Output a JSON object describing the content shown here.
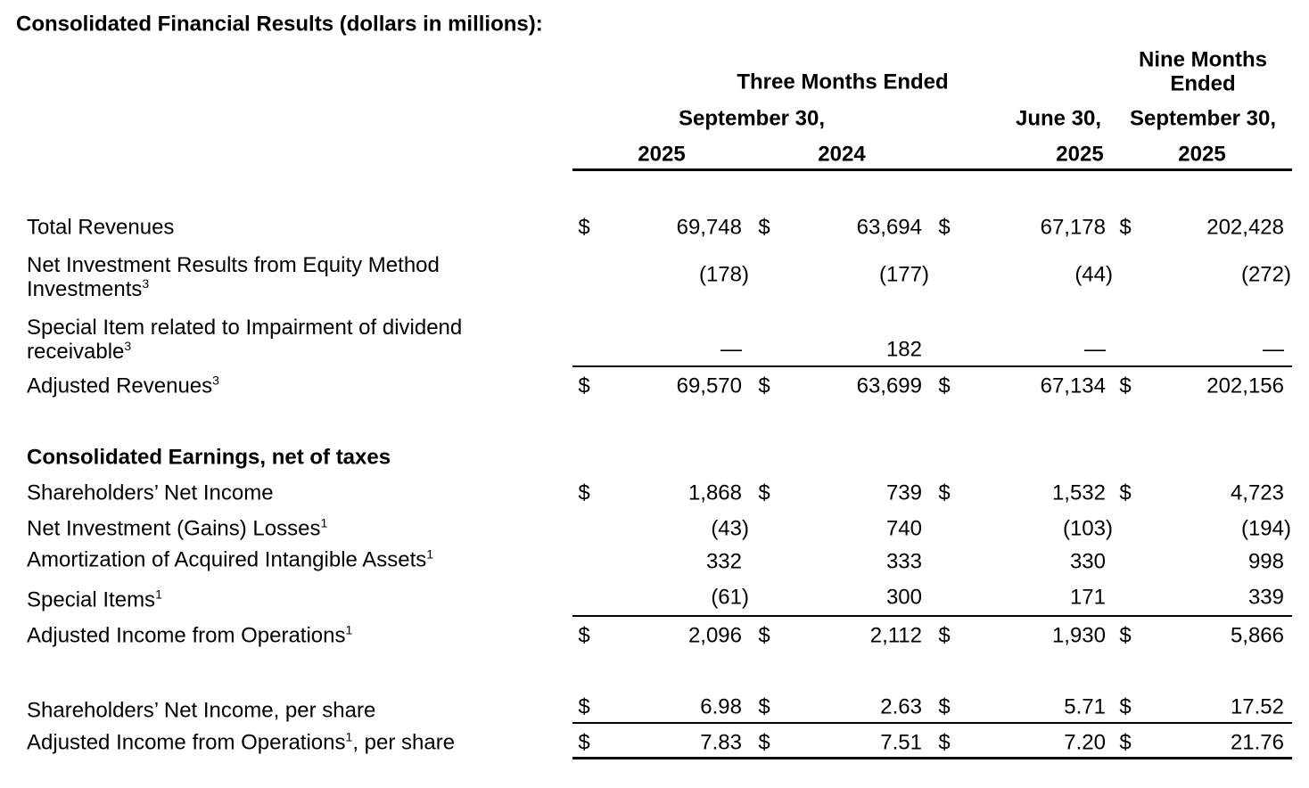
{
  "title": "Consolidated Financial Results (dollars in millions):",
  "header": {
    "three_months": "Three Months Ended",
    "nine_months": [
      "Nine Months",
      "Ended"
    ],
    "dates": [
      "September 30,",
      "June 30,",
      "September 30,"
    ],
    "years": [
      "2025",
      "2024",
      "2025",
      "2025"
    ]
  },
  "revenue_rows": [
    {
      "label": "Total Revenues",
      "currency": "$",
      "values": [
        "69,748",
        "63,694",
        "67,178",
        "202,428"
      ]
    },
    {
      "label": "Net Investment Results from Equity Method Investments",
      "note": "3",
      "values": [
        "(178)",
        "(177)",
        "(44)",
        "(272)"
      ]
    },
    {
      "label": "Special Item related to Impairment of dividend receivable",
      "note": "3",
      "values": [
        "—",
        "182",
        "—",
        "—"
      ]
    },
    {
      "label": "Adjusted Revenues",
      "note": "3",
      "currency": "$",
      "values": [
        "69,570",
        "63,699",
        "67,134",
        "202,156"
      ]
    }
  ],
  "earnings_heading": "Consolidated Earnings, net of taxes",
  "earnings_rows": [
    {
      "label": "Shareholders’ Net Income",
      "currency": "$",
      "values": [
        "1,868",
        "739",
        "1,532",
        "4,723"
      ]
    },
    {
      "label": "Net Investment (Gains) Losses",
      "note": "1",
      "values": [
        "(43)",
        "740",
        "(103)",
        "(194)"
      ]
    },
    {
      "label": "Amortization of Acquired Intangible Assets",
      "note": "1",
      "values": [
        "332",
        "333",
        "330",
        "998"
      ]
    },
    {
      "label": "Special Items",
      "note": "1",
      "values": [
        "(61)",
        "300",
        "171",
        "339"
      ]
    },
    {
      "label": "Adjusted Income from Operations",
      "note": "1",
      "currency": "$",
      "values": [
        "2,096",
        "2,112",
        "1,930",
        "5,866"
      ]
    }
  ],
  "per_share_rows": [
    {
      "label": "Shareholders’ Net Income, per share",
      "currency": "$",
      "values": [
        "6.98",
        "2.63",
        "5.71",
        "17.52"
      ]
    },
    {
      "label": "Adjusted Income from Operations",
      "note": "1",
      "suffix": ", per share",
      "currency": "$",
      "values": [
        "7.83",
        "7.51",
        "7.20",
        "21.76"
      ]
    }
  ]
}
